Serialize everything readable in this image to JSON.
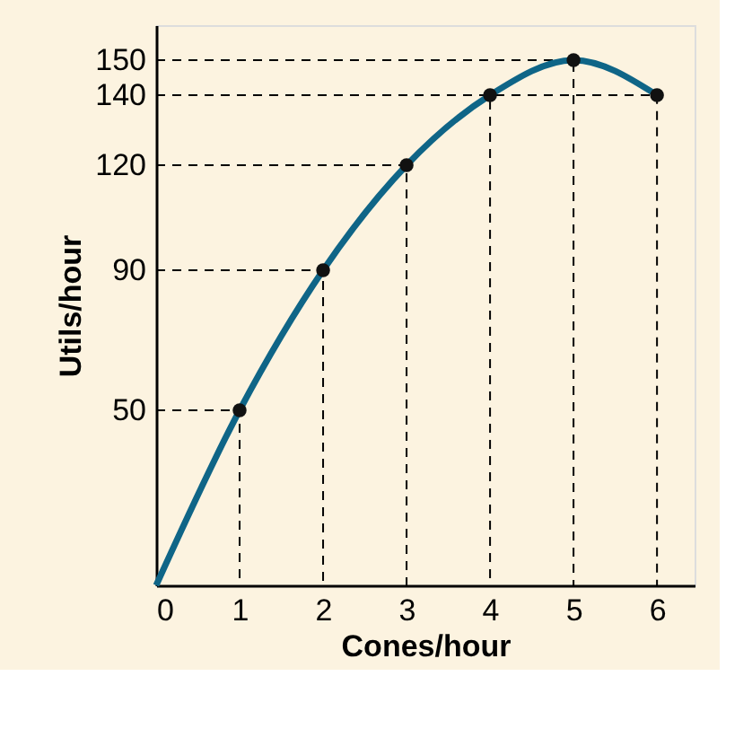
{
  "chart_data": {
    "type": "line",
    "xlabel": "Cones/hour",
    "ylabel": "Utils/hour",
    "xlim": [
      0,
      6.45
    ],
    "ylim": [
      0,
      160
    ],
    "xticks": [
      0,
      1,
      2,
      3,
      4,
      5,
      6
    ],
    "yticks": [
      50,
      90,
      120,
      140,
      150
    ],
    "grid": false,
    "series": [
      {
        "color": "#000000",
        "x": [
          0,
          1,
          1
        ],
        "values": [
          50,
          50,
          0
        ],
        "marker": "none",
        "line_style": "dashed"
      },
      {
        "color": "#000000",
        "x": [
          0,
          2,
          2
        ],
        "values": [
          90,
          90,
          0
        ],
        "marker": "none",
        "line_style": "dashed"
      },
      {
        "color": "#000000",
        "x": [
          0,
          3,
          3
        ],
        "values": [
          120,
          120,
          0
        ],
        "marker": "none",
        "line_style": "dashed"
      },
      {
        "color": "#000000",
        "x": [
          0,
          4,
          4
        ],
        "values": [
          140,
          140,
          0
        ],
        "marker": "none",
        "line_style": "dashed"
      },
      {
        "color": "#000000",
        "x": [
          0,
          5,
          5
        ],
        "values": [
          150,
          150,
          0
        ],
        "marker": "none",
        "line_style": "dashed"
      },
      {
        "color": "#000000",
        "x": [
          0,
          6,
          6
        ],
        "values": [
          140,
          140,
          0
        ],
        "marker": "none",
        "line_style": "dashed"
      },
      {
        "type": "line",
        "color": "#0f6587",
        "x": [
          0,
          1,
          2,
          3,
          4,
          5,
          6
        ],
        "values": [
          0,
          50,
          90,
          120,
          140,
          150,
          140
        ],
        "marker": "none",
        "line_style": "solid"
      },
      {
        "type": "scatter",
        "color": "#111111",
        "x": [
          1,
          2,
          3,
          4,
          5,
          6
        ],
        "values": [
          50,
          90,
          120,
          140,
          150,
          140
        ],
        "marker": "circle"
      }
    ]
  }
}
